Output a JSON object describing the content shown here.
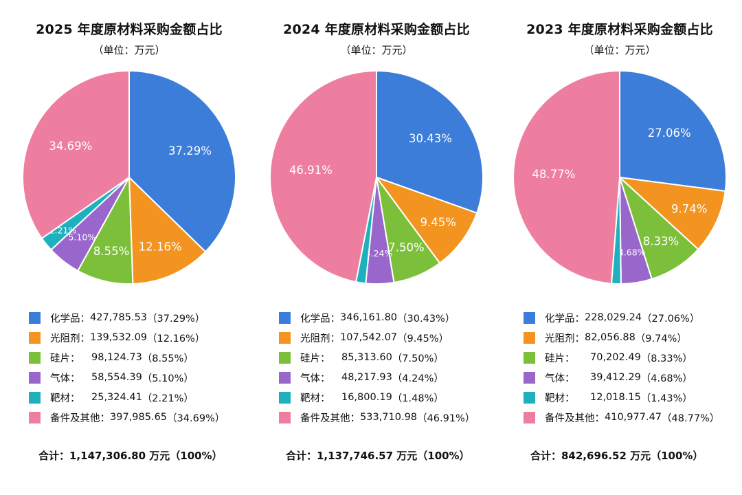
{
  "colors": [
    "#3b7dd8",
    "#f39320",
    "#7cbf3a",
    "#9966cc",
    "#1fb0bd",
    "#ee7ea0"
  ],
  "chart_data": [
    {
      "type": "pie",
      "title": "2025 年度原材料采购金额占比",
      "subtitle": "（单位：万元）",
      "legend": [
        {
          "label": "化学品：",
          "value": "427,785.53",
          "percent": "（37.29%）"
        },
        {
          "label": "光阻剂：",
          "value": "139,532.09",
          "percent": "（12.16%）"
        },
        {
          "label": "硅片：",
          "value": "98,124.73",
          "percent": "（8.55%）"
        },
        {
          "label": "气体：",
          "value": "58,554.39",
          "percent": "（5.10%）"
        },
        {
          "label": "靶材：",
          "value": "25,324.41",
          "percent": "（2.21%）"
        },
        {
          "label": "备件及其他：",
          "value": "397,985.65",
          "percent": "（34.69%）"
        }
      ],
      "slices": [
        {
          "name": "化学品",
          "value": 427785.53,
          "pct": 37.29,
          "label": "37.29%"
        },
        {
          "name": "光阻剂",
          "value": 139532.09,
          "pct": 12.16,
          "label": "12.16%"
        },
        {
          "name": "硅片",
          "value": 98124.73,
          "pct": 8.55,
          "label": "8.55%"
        },
        {
          "name": "气体",
          "value": 58554.39,
          "pct": 5.1,
          "label": "5.10%"
        },
        {
          "name": "靶材",
          "value": 25324.41,
          "pct": 2.21,
          "label": "2.21%"
        },
        {
          "name": "备件及其他",
          "value": 397985.65,
          "pct": 34.69,
          "label": "34.69%"
        }
      ],
      "total": "合计：1,147,306.80 万元（100%）"
    },
    {
      "type": "pie",
      "title": "2024 年度原材料采购金额占比",
      "subtitle": "（单位：万元）",
      "legend": [
        {
          "label": "化学品：",
          "value": "346,161.80",
          "percent": "（30.43%）"
        },
        {
          "label": "光阻剂：",
          "value": "107,542.07",
          "percent": "（9.45%）"
        },
        {
          "label": "硅片：",
          "value": "85,313.60",
          "percent": "（7.50%）"
        },
        {
          "label": "气体：",
          "value": "48,217.93",
          "percent": "（4.24%）"
        },
        {
          "label": "靶材：",
          "value": "16,800.19",
          "percent": "（1.48%）"
        },
        {
          "label": "备件及其他：",
          "value": "533,710.98",
          "percent": "（46.91%）"
        }
      ],
      "slices": [
        {
          "name": "化学品",
          "value": 346161.8,
          "pct": 30.43,
          "label": "30.43%"
        },
        {
          "name": "光阻剂",
          "value": 107542.07,
          "pct": 9.45,
          "label": "9.45%"
        },
        {
          "name": "硅片",
          "value": 85313.6,
          "pct": 7.5,
          "label": "7.50%"
        },
        {
          "name": "气体",
          "value": 48217.93,
          "pct": 4.24,
          "label": "4.24%"
        },
        {
          "name": "靶材",
          "value": 16800.19,
          "pct": 1.48,
          "label": ""
        },
        {
          "name": "备件及其他",
          "value": 533710.98,
          "pct": 46.91,
          "label": "46.91%"
        }
      ],
      "total": "合计：1,137,746.57 万元（100%）"
    },
    {
      "type": "pie",
      "title": "2023 年度原材料采购金额占比",
      "subtitle": "（单位：万元）",
      "legend": [
        {
          "label": "化学品：",
          "value": "228,029.24",
          "percent": "（27.06%）"
        },
        {
          "label": "光阻剂：",
          "value": "82,056.88",
          "percent": "（9.74%）"
        },
        {
          "label": "硅片：",
          "value": "70,202.49",
          "percent": "（8.33%）"
        },
        {
          "label": "气体：",
          "value": "39,412.29",
          "percent": "（4.68%）"
        },
        {
          "label": "靶材：",
          "value": "12,018.15",
          "percent": "（1.43%）"
        },
        {
          "label": "备件及其他：",
          "value": "410,977.47",
          "percent": "（48.77%）"
        }
      ],
      "slices": [
        {
          "name": "化学品",
          "value": 228029.24,
          "pct": 27.06,
          "label": "27.06%"
        },
        {
          "name": "光阻剂",
          "value": 82056.88,
          "pct": 9.74,
          "label": "9.74%"
        },
        {
          "name": "硅片",
          "value": 70202.49,
          "pct": 8.33,
          "label": "8.33%"
        },
        {
          "name": "气体",
          "value": 39412.29,
          "pct": 4.68,
          "label": "4.68%"
        },
        {
          "name": "靶材",
          "value": 12018.15,
          "pct": 1.43,
          "label": ""
        },
        {
          "name": "备件及其他",
          "value": 410977.47,
          "pct": 48.77,
          "label": "48.77%"
        }
      ],
      "total": "合计：842,696.52 万元（100%）"
    }
  ]
}
